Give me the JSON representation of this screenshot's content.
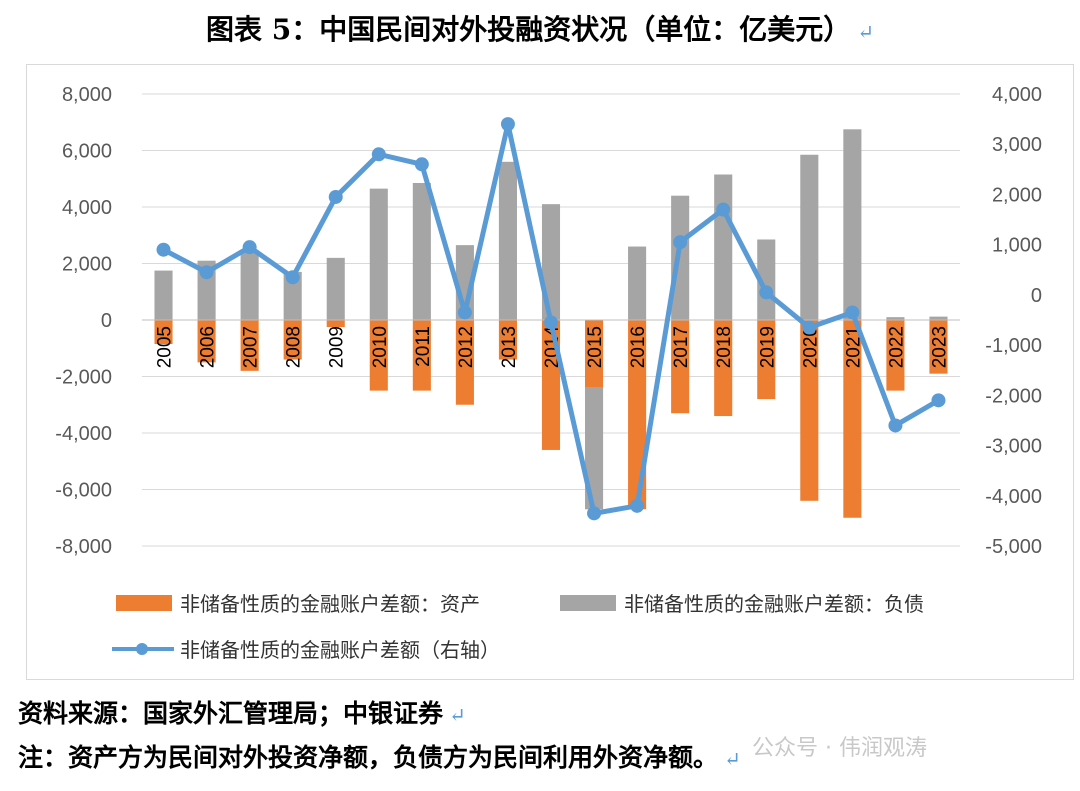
{
  "title": "图表 5：中国民间对外投融资状况（单位：亿美元）",
  "return_mark": "↵",
  "chart_data": {
    "type": "bar",
    "categories": [
      "2005",
      "2006",
      "2007",
      "2008",
      "2009",
      "2010",
      "2011",
      "2012",
      "2013",
      "2014",
      "2015",
      "2016",
      "2017",
      "2018",
      "2019",
      "2020",
      "2021",
      "2022",
      "2023"
    ],
    "series": [
      {
        "name": "非储备性质的金融账户差额：资产",
        "kind": "bar",
        "color": "#ed7d31",
        "values": [
          -850,
          -1500,
          -1800,
          -1400,
          -250,
          -2500,
          -2500,
          -3000,
          -1400,
          -4600,
          -2400,
          -6700,
          -3300,
          -3400,
          -2800,
          -6400,
          -7000,
          -2500,
          -1900
        ]
      },
      {
        "name": "非储备性质的金融账户差额：负债",
        "kind": "bar",
        "color": "#a5a5a5",
        "values": [
          1750,
          2100,
          2400,
          1700,
          2200,
          4650,
          4850,
          2650,
          5600,
          4100,
          -4300,
          2600,
          4400,
          5150,
          2850,
          5850,
          6750,
          100,
          120
        ]
      },
      {
        "name": "非储备性质的金融账户差额（右轴）",
        "kind": "line",
        "color": "#5b9bd5",
        "axis": "right",
        "values": [
          900,
          450,
          950,
          350,
          1950,
          2800,
          2600,
          -350,
          3400,
          -550,
          -4350,
          -4200,
          1050,
          1700,
          50,
          -650,
          -350,
          -2600,
          -2100
        ]
      }
    ],
    "left_axis": {
      "min": -8000,
      "max": 8000,
      "step": 2000,
      "tick_labels": [
        "8,000",
        "6,000",
        "4,000",
        "2,000",
        "0",
        "-2,000",
        "-4,000",
        "-6,000",
        "-8,000"
      ]
    },
    "right_axis": {
      "min": -5000,
      "max": 4000,
      "step": 1000,
      "tick_labels": [
        "4,000",
        "3,000",
        "2,000",
        "1,000",
        "0",
        "-1,000",
        "-2,000",
        "-3,000",
        "-4,000",
        "-5,000"
      ]
    },
    "grid": true,
    "legend_position": "bottom"
  },
  "source_note": "资料来源：国家外汇管理局；中银证券",
  "footnote": "注：资产方为民间对外投资净额，负债方为民间利用外资净额。",
  "watermark": "公众号 · 伟润观涛"
}
